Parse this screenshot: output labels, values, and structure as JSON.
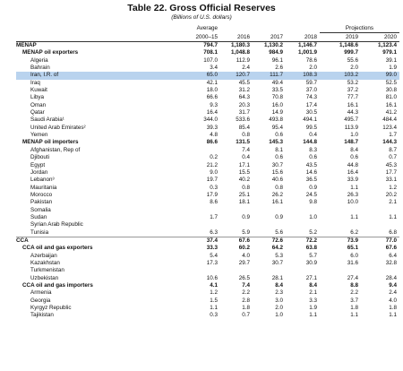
{
  "title": "Table 22. Gross Official Reserves",
  "subtitle": "(Billions of U.S. dollars)",
  "header": {
    "average": "Average",
    "projections": "Projections",
    "columns": [
      "2000–15",
      "2016",
      "2017",
      "2018",
      "2019",
      "2020"
    ]
  },
  "regions": [
    {
      "name": "MENAP",
      "values": [
        "794.7",
        "1,180.3",
        "1,130.2",
        "1,146.7",
        "1,148.6",
        "1,123.4"
      ],
      "subgroups": [
        {
          "name": "MENAP oil exporters",
          "values": [
            "708.1",
            "1,048.8",
            "984.9",
            "1,001.9",
            "999.7",
            "979.1"
          ],
          "rows": [
            {
              "name": "Algeria",
              "values": [
                "107.0",
                "112.9",
                "96.1",
                "78.6",
                "55.6",
                "39.1"
              ]
            },
            {
              "name": "Bahrain",
              "values": [
                "3.4",
                "2.4",
                "2.6",
                "2.0",
                "2.0",
                "1.9"
              ]
            },
            {
              "name": "Iran, I.R. of",
              "values": [
                "65.0",
                "120.7",
                "111.7",
                "108.3",
                "103.2",
                "99.0"
              ],
              "highlight": true
            },
            {
              "name": "Iraq",
              "values": [
                "42.1",
                "45.5",
                "49.4",
                "59.7",
                "53.2",
                "52.5"
              ]
            },
            {
              "name": "Kuwait",
              "values": [
                "18.0",
                "31.2",
                "33.5",
                "37.0",
                "37.2",
                "30.8"
              ]
            },
            {
              "name": "Libya",
              "values": [
                "66.6",
                "64.3",
                "70.8",
                "74.3",
                "77.7",
                "81.0"
              ]
            },
            {
              "name": "Oman",
              "values": [
                "9.3",
                "20.3",
                "16.0",
                "17.4",
                "16.1",
                "16.1"
              ]
            },
            {
              "name": "Qatar",
              "values": [
                "16.4",
                "31.7",
                "14.9",
                "30.5",
                "44.3",
                "41.2"
              ]
            },
            {
              "name": "Saudi Arabia¹",
              "values": [
                "344.0",
                "533.6",
                "493.8",
                "494.1",
                "495.7",
                "484.4"
              ]
            },
            {
              "name": "United Arab Emirates²",
              "values": [
                "39.3",
                "85.4",
                "95.4",
                "99.5",
                "113.9",
                "123.4"
              ]
            },
            {
              "name": "Yemen",
              "values": [
                "4.8",
                "0.8",
                "0.6",
                "0.4",
                "1.0",
                "1.7"
              ]
            }
          ]
        },
        {
          "name": "MENAP oil importers",
          "values": [
            "86.6",
            "131.5",
            "145.3",
            "144.8",
            "148.7",
            "144.3"
          ],
          "rows": [
            {
              "name": "Afghanistan, Rep of",
              "values": [
                null,
                "7.4",
                "8.1",
                "8.3",
                "8.4",
                "8.7"
              ]
            },
            {
              "name": "Djibouti",
              "values": [
                "0.2",
                "0.4",
                "0.6",
                "0.6",
                "0.6",
                "0.7"
              ]
            },
            {
              "name": "Egypt",
              "values": [
                "21.2",
                "17.1",
                "30.7",
                "43.5",
                "44.8",
                "45.3"
              ]
            },
            {
              "name": "Jordan",
              "values": [
                "9.0",
                "15.5",
                "15.6",
                "14.6",
                "16.4",
                "17.7"
              ]
            },
            {
              "name": "Lebanon³",
              "values": [
                "19.7",
                "40.2",
                "40.6",
                "36.5",
                "33.9",
                "33.1"
              ]
            },
            {
              "name": "Mauritania",
              "values": [
                "0.3",
                "0.8",
                "0.8",
                "0.9",
                "1.1",
                "1.2"
              ]
            },
            {
              "name": "Morocco",
              "values": [
                "17.9",
                "25.1",
                "26.2",
                "24.5",
                "26.3",
                "20.2"
              ]
            },
            {
              "name": "Pakistan",
              "values": [
                "8.6",
                "18.1",
                "16.1",
                "9.8",
                "10.0",
                "2.1"
              ]
            },
            {
              "name": "Somalia",
              "values": [
                null,
                null,
                null,
                null,
                null,
                null
              ]
            },
            {
              "name": "Sudan",
              "values": [
                "1.7",
                "0.9",
                "0.9",
                "1.0",
                "1.1",
                "1.1"
              ]
            },
            {
              "name": "Syrian Arab Republic",
              "values": [
                null,
                null,
                null,
                null,
                null,
                null
              ]
            },
            {
              "name": "Tunisia",
              "values": [
                "6.3",
                "5.9",
                "5.6",
                "5.2",
                "6.2",
                "6.8"
              ]
            }
          ]
        }
      ]
    },
    {
      "name": "CCA",
      "values": [
        "37.4",
        "67.6",
        "72.6",
        "72.2",
        "73.9",
        "77.0"
      ],
      "subgroups": [
        {
          "name": "CCA oil and gas exporters",
          "values": [
            "33.3",
            "60.2",
            "64.2",
            "63.8",
            "65.1",
            "67.6"
          ],
          "rows": [
            {
              "name": "Azerbaijan",
              "values": [
                "5.4",
                "4.0",
                "5.3",
                "5.7",
                "6.0",
                "6.4"
              ]
            },
            {
              "name": "Kazakhstan",
              "values": [
                "17.3",
                "29.7",
                "30.7",
                "30.9",
                "31.6",
                "32.8"
              ]
            },
            {
              "name": "Turkmenistan",
              "values": [
                null,
                null,
                null,
                null,
                null,
                null
              ]
            },
            {
              "name": "Uzbekistan",
              "values": [
                "10.6",
                "26.5",
                "28.1",
                "27.1",
                "27.4",
                "28.4"
              ]
            }
          ]
        },
        {
          "name": "CCA oil and gas importers",
          "values": [
            "4.1",
            "7.4",
            "8.4",
            "8.4",
            "8.8",
            "9.4"
          ],
          "rows": [
            {
              "name": "Armenia",
              "values": [
                "1.2",
                "2.2",
                "2.3",
                "2.1",
                "2.2",
                "2.4"
              ]
            },
            {
              "name": "Georgia",
              "values": [
                "1.5",
                "2.8",
                "3.0",
                "3.3",
                "3.7",
                "4.0"
              ]
            },
            {
              "name": "Kyrgyz Republic",
              "values": [
                "1.1",
                "1.8",
                "2.0",
                "1.9",
                "1.8",
                "1.8"
              ]
            },
            {
              "name": "Tajikistan",
              "values": [
                "0.3",
                "0.7",
                "1.0",
                "1.1",
                "1.1",
                "1.1"
              ]
            }
          ]
        }
      ]
    }
  ]
}
